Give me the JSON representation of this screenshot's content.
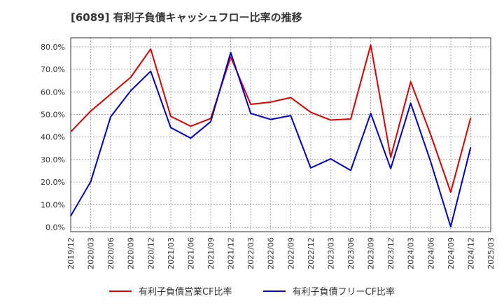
{
  "chart_data": {
    "type": "line",
    "title": "[6089]  有利子負債キャッシュフロー比率の推移",
    "x": [
      "2019/12",
      "2020/03",
      "2020/06",
      "2020/09",
      "2020/12",
      "2021/03",
      "2021/06",
      "2021/09",
      "2021/12",
      "2022/03",
      "2022/06",
      "2022/09",
      "2022/12",
      "2023/03",
      "2023/06",
      "2023/09",
      "2023/12",
      "2024/03",
      "2024/06",
      "2024/09",
      "2024/12",
      "2025/03"
    ],
    "series": [
      {
        "name": "有利子負債営業CF比率",
        "color": "#e00000",
        "values": [
          42.3,
          51.5,
          59.0,
          66.5,
          79.0,
          49.2,
          44.8,
          48.2,
          75.5,
          54.5,
          55.5,
          57.5,
          51.0,
          47.5,
          48.0,
          80.8,
          31.0,
          64.5,
          41.0,
          15.5,
          48.5,
          null
        ]
      },
      {
        "name": "有利子負債フリーCF比率",
        "color": "#0000cc",
        "values": [
          5.0,
          20.2,
          49.0,
          60.5,
          69.2,
          44.2,
          39.5,
          46.8,
          77.5,
          50.5,
          47.8,
          49.5,
          26.3,
          30.3,
          25.2,
          50.5,
          26.0,
          55.0,
          29.0,
          0.2,
          35.5,
          null
        ]
      }
    ],
    "ylim": [
      -2,
      84
    ],
    "yticks": [
      0,
      10,
      20,
      30,
      40,
      50,
      60,
      70,
      80
    ],
    "ytick_labels": [
      "0.0%",
      "10.0%",
      "20.0%",
      "30.0%",
      "40.0%",
      "50.0%",
      "60.0%",
      "70.0%",
      "80.0%"
    ],
    "xlabel": "",
    "ylabel": "",
    "grid": true,
    "legend": "bottom-center"
  }
}
